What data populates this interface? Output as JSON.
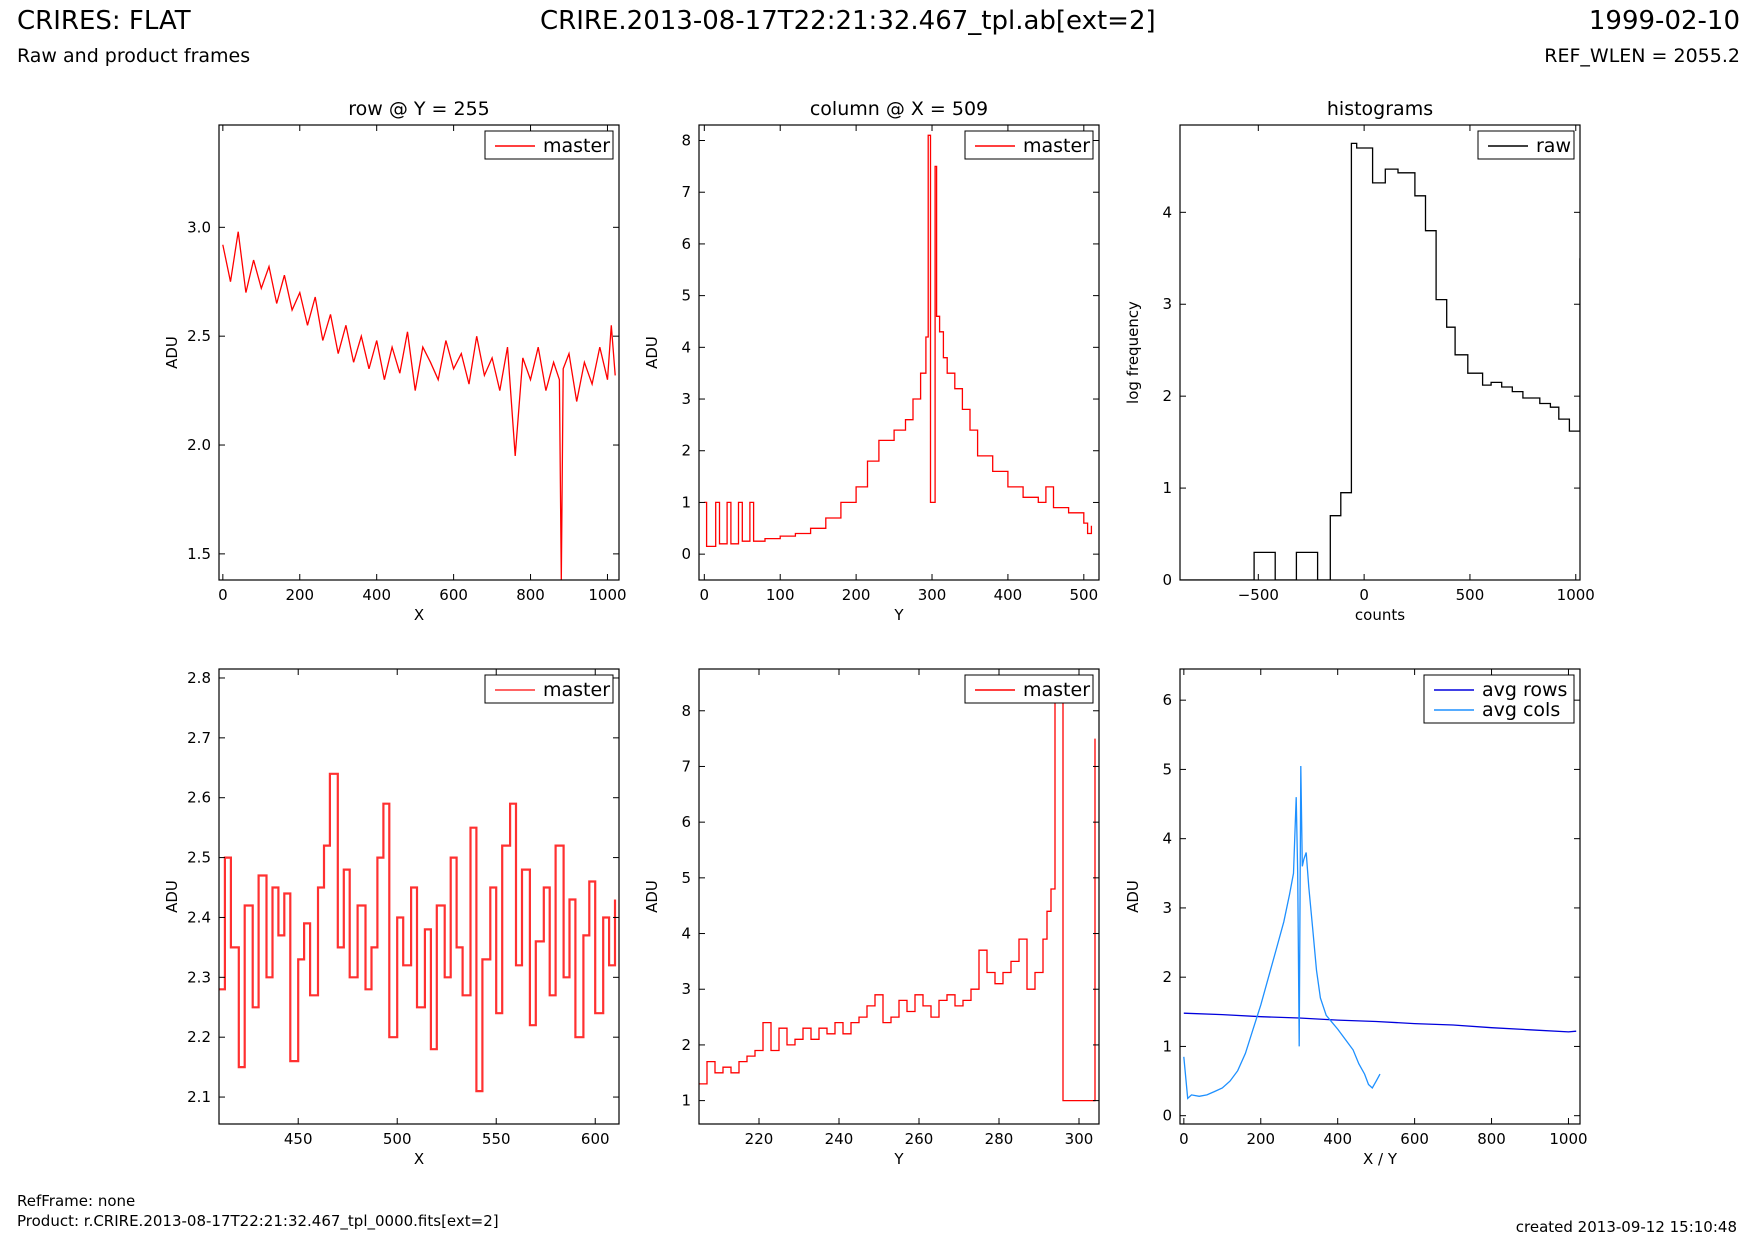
{
  "header": {
    "title": "CRIRES: FLAT",
    "subtitle": "Raw and product frames",
    "file": "CRIRE.2013-08-17T22:21:32.467_tpl.ab[ext=2]",
    "date": "1999-02-10",
    "ref_wlen": "REF_WLEN = 2055.2"
  },
  "footer": {
    "refframe": "RefFrame: none",
    "product": "Product: r.CRIRE.2013-08-17T22:21:32.467_tpl_0000.fits[ext=2]",
    "created": "created 2013-09-12 15:10:48"
  },
  "colors": {
    "master": "#ff0000",
    "raw": "#000000",
    "avg_rows": "#0000dd",
    "avg_cols": "#1e90ff"
  },
  "chart_data": [
    {
      "type": "line",
      "title": "row @ Y = 255",
      "xlabel": "X",
      "ylabel": "ADU",
      "xlim": [
        -10,
        1030
      ],
      "ylim": [
        1.38,
        3.47
      ],
      "xticks": [
        0,
        200,
        400,
        600,
        800,
        1000
      ],
      "yticks": [
        1.5,
        2.0,
        2.5,
        3.0
      ],
      "ytick_labels": [
        "1.5",
        "2.0",
        "2.5",
        "3.0"
      ],
      "legend": "top-right",
      "series": [
        {
          "name": "master",
          "color": "#ff0000",
          "step": false,
          "x": [
            0,
            20,
            40,
            60,
            80,
            100,
            120,
            140,
            160,
            180,
            200,
            220,
            240,
            260,
            280,
            300,
            320,
            340,
            360,
            380,
            400,
            420,
            440,
            460,
            480,
            500,
            520,
            540,
            560,
            580,
            600,
            620,
            640,
            660,
            680,
            700,
            720,
            740,
            760,
            780,
            800,
            820,
            840,
            860,
            875,
            880,
            885,
            900,
            920,
            940,
            960,
            980,
            1000,
            1010,
            1020
          ],
          "y": [
            2.92,
            2.75,
            2.98,
            2.7,
            2.85,
            2.72,
            2.82,
            2.65,
            2.78,
            2.62,
            2.7,
            2.55,
            2.68,
            2.48,
            2.6,
            2.42,
            2.55,
            2.38,
            2.5,
            2.35,
            2.48,
            2.3,
            2.45,
            2.33,
            2.52,
            2.25,
            2.45,
            2.38,
            2.3,
            2.48,
            2.35,
            2.42,
            2.28,
            2.5,
            2.32,
            2.4,
            2.25,
            2.45,
            1.95,
            2.4,
            2.3,
            2.45,
            2.25,
            2.38,
            2.3,
            1.38,
            2.35,
            2.42,
            2.2,
            2.38,
            2.28,
            2.45,
            2.3,
            2.55,
            2.32
          ]
        }
      ]
    },
    {
      "type": "line",
      "title": "column @ X = 509",
      "xlabel": "Y",
      "ylabel": "ADU",
      "xlim": [
        -7,
        520
      ],
      "ylim": [
        -0.5,
        8.3
      ],
      "xticks": [
        0,
        100,
        200,
        300,
        400,
        500
      ],
      "yticks": [
        0,
        1,
        2,
        3,
        4,
        5,
        6,
        7,
        8
      ],
      "ytick_labels": [
        "0",
        "1",
        "2",
        "3",
        "4",
        "5",
        "6",
        "7",
        "8"
      ],
      "legend": "top-right",
      "series": [
        {
          "name": "master",
          "color": "#ff0000",
          "step": true,
          "x": [
            0,
            3,
            15,
            20,
            30,
            35,
            45,
            50,
            60,
            65,
            80,
            100,
            120,
            140,
            160,
            180,
            200,
            215,
            230,
            250,
            265,
            275,
            285,
            292,
            295,
            298,
            300,
            304,
            306,
            310,
            315,
            320,
            330,
            340,
            350,
            360,
            380,
            400,
            420,
            440,
            450,
            460,
            480,
            500,
            505,
            510
          ],
          "y": [
            1.0,
            0.15,
            1.0,
            0.2,
            1.0,
            0.2,
            1.0,
            0.25,
            1.0,
            0.25,
            0.3,
            0.35,
            0.4,
            0.5,
            0.7,
            1.0,
            1.3,
            1.8,
            2.2,
            2.4,
            2.6,
            3.0,
            3.5,
            4.2,
            8.1,
            1.0,
            1.0,
            7.5,
            4.6,
            4.3,
            3.8,
            3.5,
            3.2,
            2.8,
            2.4,
            1.9,
            1.6,
            1.3,
            1.1,
            1.0,
            1.3,
            0.9,
            0.8,
            0.6,
            0.4,
            0.55
          ]
        }
      ]
    },
    {
      "type": "line",
      "title": "histograms",
      "xlabel": "counts",
      "ylabel": "log frequency",
      "xlim": [
        -870,
        1020
      ],
      "ylim": [
        0,
        4.95
      ],
      "xticks": [
        -500,
        0,
        500,
        1000
      ],
      "xtick_labels": [
        "−500",
        "0",
        "500",
        "1000"
      ],
      "yticks": [
        0,
        1,
        2,
        3,
        4
      ],
      "ytick_labels": [
        "0",
        "1",
        "2",
        "3",
        "4"
      ],
      "legend": "top-right",
      "series": [
        {
          "name": "raw",
          "color": "#000000",
          "step": "post",
          "x": [
            -870,
            -520,
            -420,
            -320,
            -220,
            -160,
            -110,
            -60,
            -35,
            40,
            100,
            160,
            240,
            290,
            340,
            390,
            430,
            490,
            560,
            600,
            650,
            700,
            750,
            830,
            880,
            920,
            970,
            1020
          ],
          "y": [
            0,
            0.3,
            0,
            0.3,
            0,
            0.7,
            0.95,
            4.75,
            4.7,
            4.32,
            4.47,
            4.43,
            4.18,
            3.8,
            3.05,
            2.75,
            2.45,
            2.25,
            2.12,
            2.15,
            2.1,
            2.05,
            1.98,
            1.92,
            1.88,
            1.75,
            1.62,
            3.5
          ]
        }
      ]
    },
    {
      "type": "line",
      "title": "",
      "xlabel": "X",
      "ylabel": "ADU",
      "xlim": [
        410,
        612
      ],
      "ylim": [
        2.055,
        2.815
      ],
      "xticks": [
        450,
        500,
        550,
        600
      ],
      "yticks": [
        2.1,
        2.2,
        2.3,
        2.4,
        2.5,
        2.6,
        2.7,
        2.8
      ],
      "ytick_labels": [
        "2.1",
        "2.2",
        "2.3",
        "2.4",
        "2.5",
        "2.6",
        "2.7",
        "2.8"
      ],
      "legend": "top-right",
      "series": [
        {
          "name": "master",
          "color": "#ff3030",
          "step": true,
          "x": [
            410,
            413,
            416,
            420,
            423,
            427,
            430,
            434,
            437,
            440,
            443,
            446,
            450,
            453,
            456,
            460,
            463,
            466,
            470,
            473,
            476,
            480,
            484,
            487,
            490,
            493,
            496,
            500,
            503,
            507,
            510,
            514,
            517,
            520,
            524,
            527,
            530,
            533,
            537,
            540,
            543,
            547,
            550,
            553,
            557,
            560,
            563,
            567,
            570,
            574,
            577,
            580,
            584,
            587,
            590,
            594,
            597,
            600,
            604,
            607,
            610
          ],
          "y": [
            2.28,
            2.5,
            2.35,
            2.15,
            2.42,
            2.25,
            2.47,
            2.3,
            2.45,
            2.37,
            2.44,
            2.16,
            2.33,
            2.39,
            2.27,
            2.45,
            2.52,
            2.64,
            2.35,
            2.48,
            2.3,
            2.42,
            2.28,
            2.35,
            2.5,
            2.59,
            2.2,
            2.4,
            2.32,
            2.45,
            2.25,
            2.38,
            2.18,
            2.42,
            2.3,
            2.5,
            2.35,
            2.27,
            2.55,
            2.11,
            2.33,
            2.45,
            2.24,
            2.52,
            2.59,
            2.32,
            2.48,
            2.22,
            2.36,
            2.45,
            2.27,
            2.52,
            2.3,
            2.43,
            2.2,
            2.37,
            2.46,
            2.24,
            2.4,
            2.32,
            2.43
          ]
        }
      ]
    },
    {
      "type": "line",
      "title": "",
      "xlabel": "Y",
      "ylabel": "ADU",
      "xlim": [
        205,
        305
      ],
      "ylim": [
        0.58,
        8.75
      ],
      "xticks": [
        220,
        240,
        260,
        280,
        300
      ],
      "yticks": [
        1,
        2,
        3,
        4,
        5,
        6,
        7,
        8
      ],
      "ytick_labels": [
        "1",
        "2",
        "3",
        "4",
        "5",
        "6",
        "7",
        "8"
      ],
      "legend": "top-right",
      "series": [
        {
          "name": "master",
          "color": "#ff0000",
          "step": true,
          "x": [
            205,
            207,
            209,
            211,
            213,
            215,
            217,
            219,
            221,
            223,
            225,
            227,
            229,
            231,
            233,
            235,
            237,
            239,
            241,
            243,
            245,
            247,
            249,
            251,
            253,
            255,
            257,
            259,
            261,
            263,
            265,
            267,
            269,
            271,
            273,
            275,
            277,
            279,
            281,
            283,
            285,
            287,
            289,
            291,
            292,
            293,
            294,
            295,
            296,
            303,
            304
          ],
          "y": [
            1.3,
            1.7,
            1.5,
            1.6,
            1.5,
            1.7,
            1.8,
            1.9,
            2.4,
            1.9,
            2.3,
            2.0,
            2.1,
            2.3,
            2.1,
            2.3,
            2.2,
            2.4,
            2.2,
            2.4,
            2.5,
            2.7,
            2.9,
            2.4,
            2.5,
            2.8,
            2.6,
            2.9,
            2.7,
            2.5,
            2.8,
            2.9,
            2.7,
            2.8,
            3.0,
            3.7,
            3.3,
            3.1,
            3.3,
            3.5,
            3.9,
            3.0,
            3.3,
            3.9,
            4.4,
            4.8,
            8.5,
            8.3,
            1.0,
            1.0,
            7.5
          ]
        }
      ]
    },
    {
      "type": "line",
      "title": "",
      "xlabel": "X / Y",
      "ylabel": "ADU",
      "xlim": [
        -10,
        1030
      ],
      "ylim": [
        -0.12,
        6.45
      ],
      "xticks": [
        0,
        200,
        400,
        600,
        800,
        1000
      ],
      "yticks": [
        0,
        1,
        2,
        3,
        4,
        5,
        6
      ],
      "ytick_labels": [
        "0",
        "1",
        "2",
        "3",
        "4",
        "5",
        "6"
      ],
      "legend": "top-right",
      "series": [
        {
          "name": "avg rows",
          "color": "#0000dd",
          "step": false,
          "x": [
            0,
            100,
            200,
            300,
            400,
            500,
            600,
            700,
            800,
            900,
            1000,
            1020
          ],
          "y": [
            1.48,
            1.46,
            1.43,
            1.41,
            1.38,
            1.36,
            1.33,
            1.31,
            1.27,
            1.24,
            1.21,
            1.22
          ]
        },
        {
          "name": "avg cols",
          "color": "#1e90ff",
          "step": false,
          "x": [
            0,
            10,
            20,
            40,
            60,
            80,
            100,
            120,
            140,
            160,
            180,
            200,
            220,
            240,
            260,
            275,
            285,
            292,
            296,
            300,
            304,
            308,
            312,
            318,
            325,
            335,
            345,
            355,
            370,
            385,
            400,
            420,
            440,
            455,
            470,
            480,
            490,
            500,
            510
          ],
          "y": [
            0.85,
            0.25,
            0.3,
            0.28,
            0.3,
            0.35,
            0.4,
            0.5,
            0.65,
            0.9,
            1.25,
            1.6,
            2.0,
            2.4,
            2.8,
            3.2,
            3.5,
            4.6,
            3.5,
            1.0,
            5.05,
            3.6,
            3.7,
            3.8,
            3.3,
            2.7,
            2.1,
            1.7,
            1.45,
            1.35,
            1.25,
            1.1,
            0.95,
            0.75,
            0.6,
            0.45,
            0.4,
            0.5,
            0.6
          ]
        }
      ]
    }
  ]
}
